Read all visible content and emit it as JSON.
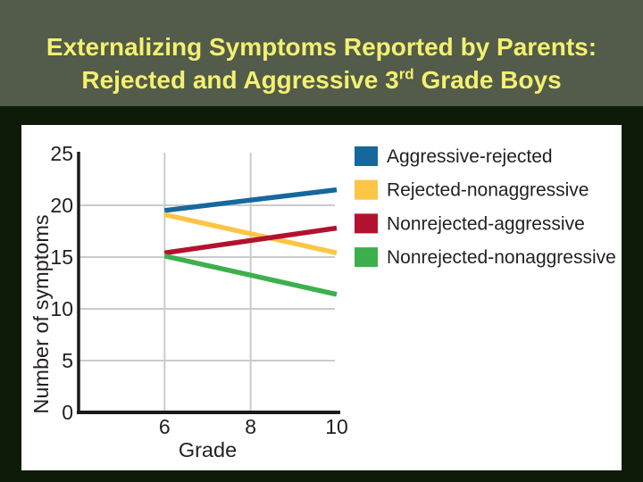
{
  "slide": {
    "title_line1": "Externalizing Symptoms Reported by Parents:",
    "title_line2_prefix": "Rejected and Aggressive 3",
    "title_line2_sup": "rd",
    "title_line2_suffix": " Grade Boys"
  },
  "colors": {
    "page_background": "#0d1a08",
    "title_background": "#535b4a",
    "title_text": "#f2f170",
    "panel_background": "#ffffff",
    "gridline": "#cbcbcb",
    "axis": "#1a1a1a",
    "chart_text": "#231f20"
  },
  "chart_data": {
    "type": "line",
    "title": "",
    "xlabel": "Grade",
    "ylabel": "Number of symptoms",
    "x": [
      6,
      10
    ],
    "xlim": [
      4,
      10
    ],
    "ylim": [
      0,
      25
    ],
    "xticks": [
      6,
      8,
      10
    ],
    "yticks": [
      25,
      20,
      15,
      10,
      5,
      0
    ],
    "xgrid": [
      6,
      8
    ],
    "ygrid": [
      20,
      15,
      10,
      5
    ],
    "grid": true,
    "legend_position": "top-right",
    "series": [
      {
        "name": "Aggressive-rejected",
        "color": "#16689c",
        "values": [
          19.5,
          21.5
        ]
      },
      {
        "name": "Rejected-nonaggressive",
        "color": "#fbc646",
        "values": [
          19.1,
          15.4
        ]
      },
      {
        "name": "Nonrejected-aggressive",
        "color": "#b3122f",
        "values": [
          15.4,
          17.8
        ]
      },
      {
        "name": "Nonrejected-nonaggressive",
        "color": "#3cb04c",
        "values": [
          15.1,
          11.4
        ]
      }
    ]
  }
}
